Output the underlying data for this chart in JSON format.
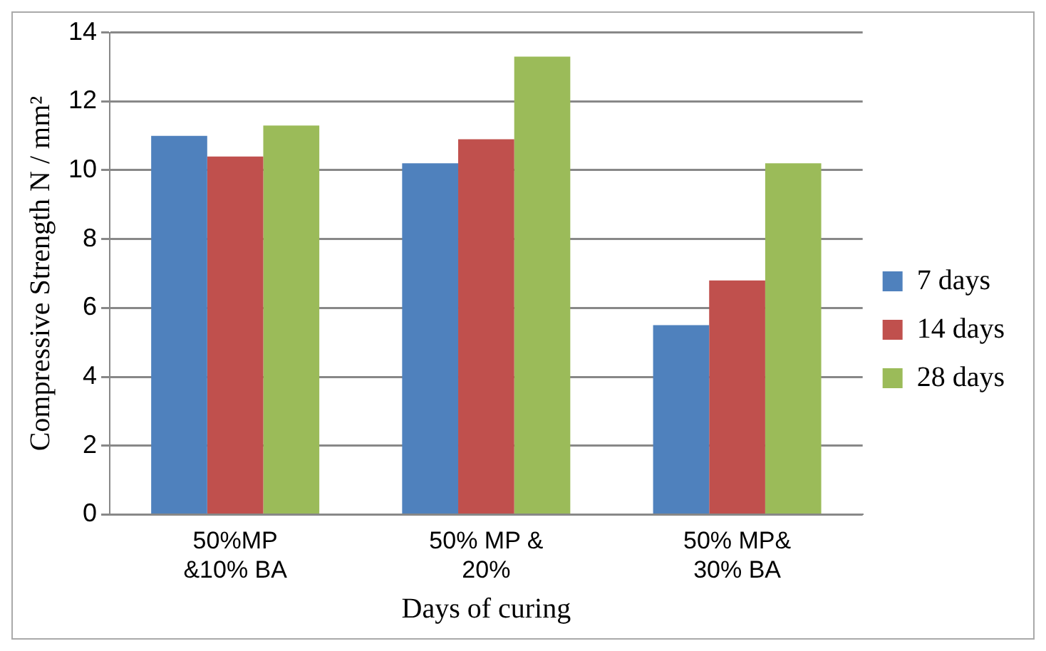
{
  "chart_data": {
    "type": "bar",
    "xlabel": "Days of curing",
    "ylabel": "Compressive Strength N / mm²",
    "categories": [
      "50%MP &10% BA",
      "50% MP & 20%",
      "50% MP& 30% BA"
    ],
    "series": [
      {
        "name": "7 days",
        "color": "#4f81bd",
        "values": [
          11.0,
          10.2,
          5.5
        ]
      },
      {
        "name": "14 days",
        "color": "#c0504d",
        "values": [
          10.4,
          10.9,
          6.8
        ]
      },
      {
        "name": "28 days",
        "color": "#9bbb59",
        "values": [
          11.3,
          13.3,
          10.2
        ]
      }
    ],
    "ylim": [
      0,
      14
    ],
    "yticks": [
      0,
      2,
      4,
      6,
      8,
      10,
      12,
      14
    ],
    "grid": "y",
    "legend": "right"
  }
}
